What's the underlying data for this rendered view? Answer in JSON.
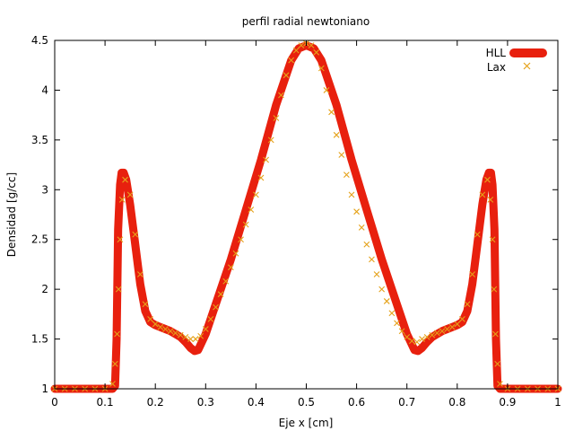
{
  "chart_data": {
    "type": "line",
    "title": "perfil radial newtoniano",
    "xlabel": "Eje x [cm]",
    "ylabel": "Densidad [g/cc]",
    "xlim": [
      0,
      1
    ],
    "ylim": [
      1,
      4.5
    ],
    "x_ticks": [
      0,
      0.1,
      0.2,
      0.3,
      0.4,
      0.5,
      0.6,
      0.7,
      0.8,
      0.9,
      1
    ],
    "x_tick_labels": [
      "0",
      "0.1",
      "0.2",
      "0.3",
      "0.4",
      "0.5",
      "0.6",
      "0.7",
      "0.8",
      "0.9",
      "1"
    ],
    "y_ticks": [
      1,
      1.5,
      2,
      2.5,
      3,
      3.5,
      4,
      4.5
    ],
    "y_tick_labels": [
      "1",
      "1.5",
      "2",
      "2.5",
      "3",
      "3.5",
      "4",
      "4.5"
    ],
    "grid": false,
    "legend_position": "top-right",
    "series": [
      {
        "name": "HLL",
        "style": "thick-line",
        "color": "#e8200e",
        "x": [
          0,
          0.05,
          0.1,
          0.115,
          0.12,
          0.123,
          0.126,
          0.13,
          0.133,
          0.137,
          0.142,
          0.15,
          0.16,
          0.17,
          0.18,
          0.19,
          0.2,
          0.21,
          0.22,
          0.23,
          0.24,
          0.25,
          0.26,
          0.27,
          0.278,
          0.285,
          0.3,
          0.32,
          0.35,
          0.38,
          0.41,
          0.44,
          0.47,
          0.485,
          0.5,
          0.515,
          0.53,
          0.56,
          0.59,
          0.62,
          0.65,
          0.68,
          0.7,
          0.715,
          0.722,
          0.73,
          0.74,
          0.75,
          0.76,
          0.77,
          0.78,
          0.79,
          0.8,
          0.81,
          0.82,
          0.83,
          0.84,
          0.85,
          0.858,
          0.863,
          0.867,
          0.87,
          0.874,
          0.877,
          0.88,
          0.885,
          0.9,
          0.95,
          1.0
        ],
        "y": [
          1.0,
          1.0,
          1.0,
          1.0,
          1.03,
          1.5,
          2.6,
          3.05,
          3.17,
          3.17,
          3.1,
          2.85,
          2.45,
          2.05,
          1.78,
          1.67,
          1.64,
          1.62,
          1.6,
          1.58,
          1.55,
          1.52,
          1.47,
          1.41,
          1.38,
          1.39,
          1.55,
          1.85,
          2.3,
          2.8,
          3.3,
          3.85,
          4.3,
          4.42,
          4.45,
          4.42,
          4.3,
          3.85,
          3.3,
          2.8,
          2.3,
          1.85,
          1.55,
          1.39,
          1.38,
          1.41,
          1.47,
          1.52,
          1.55,
          1.58,
          1.6,
          1.62,
          1.64,
          1.67,
          1.78,
          2.05,
          2.45,
          2.85,
          3.1,
          3.17,
          3.17,
          3.05,
          2.6,
          1.5,
          1.03,
          1.0,
          1.0,
          1.0,
          1.0
        ]
      },
      {
        "name": "Lax",
        "style": "x-markers",
        "color": "#e5a21a",
        "x": [
          0,
          0.02,
          0.04,
          0.06,
          0.08,
          0.1,
          0.115,
          0.12,
          0.124,
          0.127,
          0.13,
          0.134,
          0.14,
          0.15,
          0.16,
          0.17,
          0.18,
          0.19,
          0.2,
          0.21,
          0.22,
          0.23,
          0.24,
          0.25,
          0.26,
          0.27,
          0.28,
          0.29,
          0.3,
          0.31,
          0.32,
          0.33,
          0.34,
          0.35,
          0.36,
          0.37,
          0.38,
          0.39,
          0.4,
          0.41,
          0.42,
          0.43,
          0.44,
          0.45,
          0.46,
          0.47,
          0.48,
          0.49,
          0.5,
          0.51,
          0.52,
          0.53,
          0.54,
          0.55,
          0.56,
          0.57,
          0.58,
          0.59,
          0.6,
          0.61,
          0.62,
          0.63,
          0.64,
          0.65,
          0.66,
          0.67,
          0.68,
          0.69,
          0.7,
          0.71,
          0.72,
          0.73,
          0.74,
          0.75,
          0.76,
          0.77,
          0.78,
          0.79,
          0.8,
          0.81,
          0.82,
          0.83,
          0.84,
          0.85,
          0.86,
          0.866,
          0.87,
          0.873,
          0.876,
          0.88,
          0.885,
          0.9,
          0.92,
          0.94,
          0.96,
          0.98,
          1.0
        ],
        "y": [
          1.0,
          1.0,
          1.0,
          1.0,
          1.0,
          1.0,
          1.05,
          1.25,
          1.55,
          2.0,
          2.5,
          2.9,
          3.1,
          2.95,
          2.55,
          2.15,
          1.85,
          1.7,
          1.65,
          1.62,
          1.6,
          1.58,
          1.56,
          1.54,
          1.52,
          1.5,
          1.5,
          1.53,
          1.6,
          1.7,
          1.82,
          1.95,
          2.08,
          2.22,
          2.36,
          2.5,
          2.65,
          2.8,
          2.95,
          3.12,
          3.3,
          3.5,
          3.72,
          3.95,
          4.15,
          4.3,
          4.4,
          4.45,
          4.47,
          4.45,
          4.38,
          4.22,
          4.0,
          3.78,
          3.55,
          3.35,
          3.15,
          2.95,
          2.78,
          2.62,
          2.45,
          2.3,
          2.15,
          2.0,
          1.88,
          1.76,
          1.66,
          1.58,
          1.52,
          1.48,
          1.47,
          1.5,
          1.52,
          1.54,
          1.56,
          1.58,
          1.6,
          1.62,
          1.65,
          1.7,
          1.85,
          2.15,
          2.55,
          2.95,
          3.1,
          2.9,
          2.5,
          2.0,
          1.55,
          1.25,
          1.05,
          1.0,
          1.0,
          1.0,
          1.0,
          1.0,
          1.0
        ]
      }
    ]
  }
}
